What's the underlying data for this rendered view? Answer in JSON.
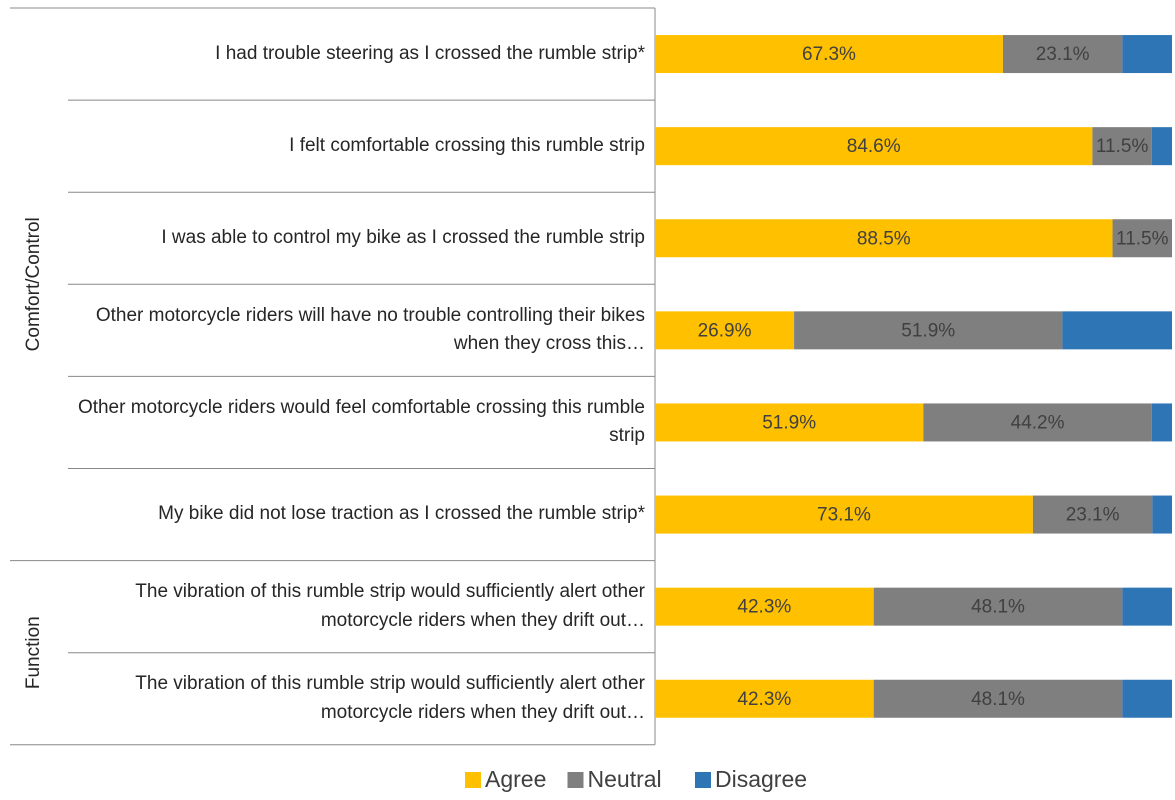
{
  "chart_data": {
    "type": "stacked-bar-horizontal",
    "groups": [
      {
        "name": "Comfort/Control",
        "categories": [
          "I had trouble steering as I crossed the rumble strip*",
          "I felt comfortable crossing this rumble strip",
          "I was able to control my bike as I crossed the rumble strip",
          "Other motorcycle riders will have no trouble controlling their bikes when they cross this…",
          "Other motorcycle riders would feel comfortable crossing this rumble strip",
          "My bike did not lose traction as I crossed the rumble strip*"
        ]
      },
      {
        "name": "Function",
        "categories": [
          "The vibration of this rumble strip would sufficiently alert other motorcycle riders when they drift out…",
          "The vibration of this rumble strip would sufficiently alert other motorcycle riders when they drift out…"
        ]
      }
    ],
    "series": [
      {
        "name": "Agree",
        "color": "#ffc000",
        "values": [
          67.3,
          84.6,
          88.5,
          26.9,
          51.9,
          73.1,
          42.3,
          42.3
        ],
        "value_labels": [
          "67.3%",
          "84.6%",
          "88.5%",
          "26.9%",
          "51.9%",
          "73.1%",
          "42.3%",
          "42.3%"
        ]
      },
      {
        "name": "Neutral",
        "color": "#7f7f7f",
        "values": [
          23.1,
          11.5,
          11.5,
          51.9,
          44.2,
          23.1,
          48.1,
          48.1
        ],
        "value_labels": [
          "23.1%",
          "11.5%",
          "11.5%",
          "51.9%",
          "44.2%",
          "23.1%",
          "48.1%",
          "48.1%"
        ]
      },
      {
        "name": "Disagree",
        "color": "#2e75b6",
        "values": [
          9.6,
          3.9,
          0,
          21.2,
          3.9,
          3.8,
          9.6,
          9.6
        ]
      }
    ],
    "xlim": [
      0,
      100
    ]
  }
}
